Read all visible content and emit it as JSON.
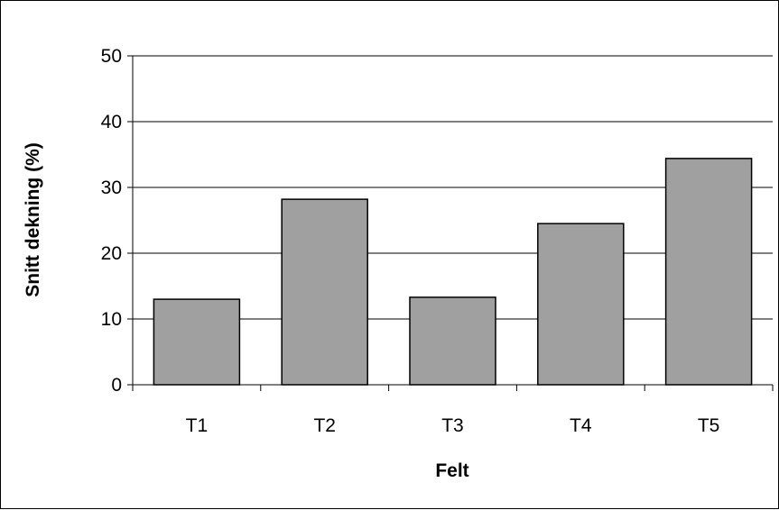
{
  "chart_data": {
    "type": "bar",
    "title": "",
    "xlabel": "Felt",
    "ylabel": "Snitt dekning (%)",
    "categories": [
      "T1",
      "T2",
      "T3",
      "T4",
      "T5"
    ],
    "values": [
      13,
      28.2,
      13.3,
      24.5,
      34.4
    ],
    "ylim": [
      0,
      50
    ],
    "yticks": [
      0,
      10,
      20,
      30,
      40,
      50
    ],
    "ytick_labels": [
      "0",
      "10",
      "20",
      "30",
      "40",
      "50"
    ],
    "grid": "horizontal",
    "legend": "none",
    "colors": {
      "bar_fill": "#a0a0a0",
      "bar_stroke": "#000000",
      "grid": "#000000",
      "background": "#ffffff"
    }
  }
}
